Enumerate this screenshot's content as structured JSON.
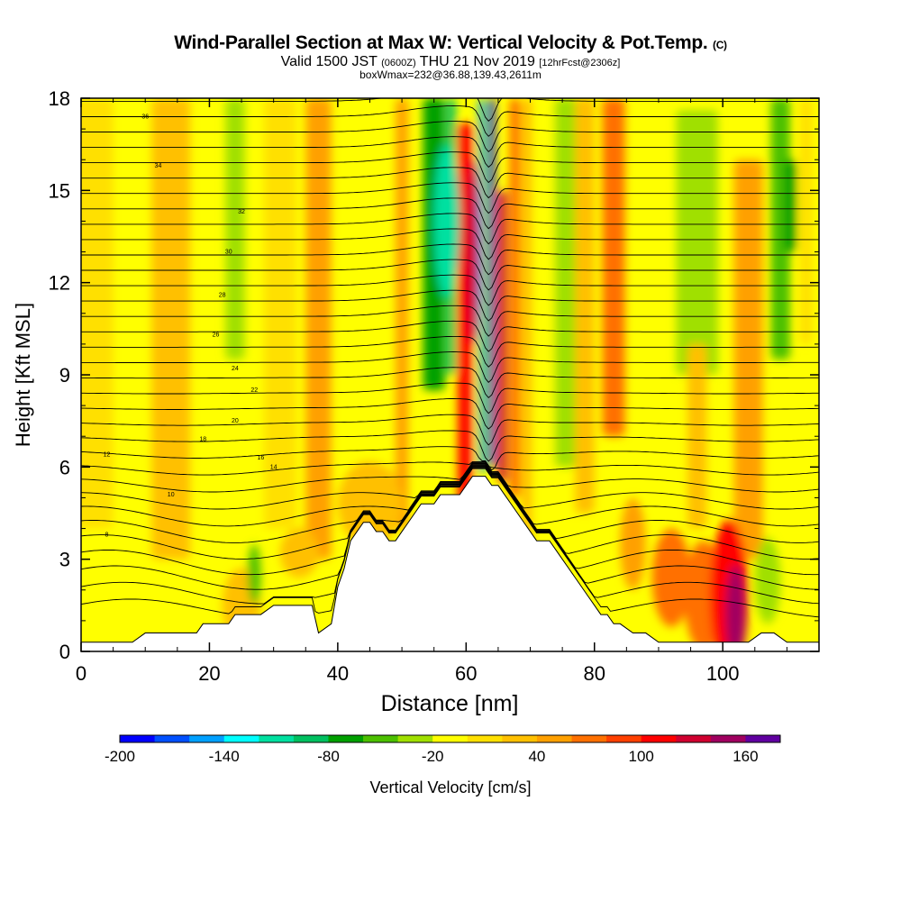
{
  "title": "Wind-Parallel Section at Max W: Vertical Velocity & Pot.Temp.",
  "title_tag": "(C)",
  "subtitle_main": "Valid 1500 JST",
  "subtitle_small1": "(0600Z)",
  "subtitle_mid": "THU 21 Nov 2019",
  "subtitle_small2": "[12hrFcst@2306z]",
  "box_line": "boxWmax=232@36.88,139.43,2611m",
  "chart_data": {
    "type": "heatmap",
    "xlabel": "Distance [nm]",
    "ylabel": "Height [Kft MSL]",
    "xlim": [
      0,
      115
    ],
    "ylim": [
      0,
      18
    ],
    "x_ticks": [
      0,
      20,
      40,
      60,
      80,
      100
    ],
    "y_ticks": [
      0,
      3,
      6,
      9,
      12,
      15,
      18
    ],
    "colorbar": {
      "label": "Vertical Velocity [cm/s]",
      "range": [
        -200,
        180
      ],
      "step": 20,
      "tick_labels": [
        -200,
        -140,
        -80,
        -20,
        40,
        100,
        160
      ],
      "colors": [
        "#0000ff",
        "#0050ff",
        "#00a0ff",
        "#00ffff",
        "#00e0a0",
        "#00c060",
        "#00a000",
        "#4cc000",
        "#a0e000",
        "#ffff00",
        "#ffe000",
        "#ffc000",
        "#ffa000",
        "#ff7000",
        "#ff4000",
        "#ff0000",
        "#d00030",
        "#a00060",
        "#6000a0"
      ]
    },
    "terrain": [
      [
        0,
        0.3
      ],
      [
        2,
        0.3
      ],
      [
        4,
        0.3
      ],
      [
        6,
        0.3
      ],
      [
        8,
        0.3
      ],
      [
        10,
        0.6
      ],
      [
        14,
        0.6
      ],
      [
        18,
        0.6
      ],
      [
        19,
        0.9
      ],
      [
        21,
        0.9
      ],
      [
        23,
        0.9
      ],
      [
        24,
        1.2
      ],
      [
        28,
        1.2
      ],
      [
        30,
        1.5
      ],
      [
        33,
        1.5
      ],
      [
        36,
        1.5
      ],
      [
        37,
        0.6
      ],
      [
        39,
        0.9
      ],
      [
        40,
        2.1
      ],
      [
        41,
        2.7
      ],
      [
        42,
        3.6
      ],
      [
        43,
        3.9
      ],
      [
        44,
        4.2
      ],
      [
        45,
        4.2
      ],
      [
        46,
        3.9
      ],
      [
        47,
        3.9
      ],
      [
        48,
        3.6
      ],
      [
        49,
        3.6
      ],
      [
        50,
        3.9
      ],
      [
        51,
        4.2
      ],
      [
        52,
        4.5
      ],
      [
        53,
        4.8
      ],
      [
        54,
        4.8
      ],
      [
        55,
        4.8
      ],
      [
        56,
        5.1
      ],
      [
        57,
        5.1
      ],
      [
        58,
        5.1
      ],
      [
        59,
        5.1
      ],
      [
        60,
        5.4
      ],
      [
        61,
        5.7
      ],
      [
        62,
        5.7
      ],
      [
        63,
        5.7
      ],
      [
        64,
        5.4
      ],
      [
        65,
        5.4
      ],
      [
        66,
        5.1
      ],
      [
        67,
        4.8
      ],
      [
        68,
        4.5
      ],
      [
        69,
        4.2
      ],
      [
        70,
        3.9
      ],
      [
        71,
        3.6
      ],
      [
        72,
        3.6
      ],
      [
        73,
        3.6
      ],
      [
        74,
        3.3
      ],
      [
        75,
        3.0
      ],
      [
        76,
        2.7
      ],
      [
        77,
        2.4
      ],
      [
        78,
        2.1
      ],
      [
        79,
        1.8
      ],
      [
        80,
        1.5
      ],
      [
        81,
        1.2
      ],
      [
        82,
        1.2
      ],
      [
        83,
        0.9
      ],
      [
        84,
        0.9
      ],
      [
        86,
        0.6
      ],
      [
        88,
        0.6
      ],
      [
        90,
        0.3
      ],
      [
        94,
        0.3
      ],
      [
        96,
        0.3
      ],
      [
        100,
        0.3
      ],
      [
        104,
        0.3
      ],
      [
        106,
        0.6
      ],
      [
        108,
        0.6
      ],
      [
        110,
        0.3
      ],
      [
        112,
        0.3
      ],
      [
        115,
        0.3
      ]
    ],
    "theta_labels": [
      {
        "x": 4,
        "y": 3.8,
        "v": "8"
      },
      {
        "x": 14,
        "y": 5.1,
        "v": "10"
      },
      {
        "x": 4,
        "y": 6.4,
        "v": "12"
      },
      {
        "x": 30,
        "y": 6.0,
        "v": "14"
      },
      {
        "x": 28,
        "y": 6.3,
        "v": "16"
      },
      {
        "x": 19,
        "y": 6.9,
        "v": "18"
      },
      {
        "x": 24,
        "y": 7.5,
        "v": "20"
      },
      {
        "x": 27,
        "y": 8.5,
        "v": "22"
      },
      {
        "x": 24,
        "y": 9.2,
        "v": "24"
      },
      {
        "x": 21,
        "y": 10.3,
        "v": "26"
      },
      {
        "x": 22,
        "y": 11.6,
        "v": "28"
      },
      {
        "x": 23,
        "y": 13.0,
        "v": "30"
      },
      {
        "x": 25,
        "y": 14.3,
        "v": "32"
      },
      {
        "x": 12,
        "y": 15.8,
        "v": "34"
      },
      {
        "x": 10,
        "y": 17.4,
        "v": "36"
      }
    ]
  }
}
